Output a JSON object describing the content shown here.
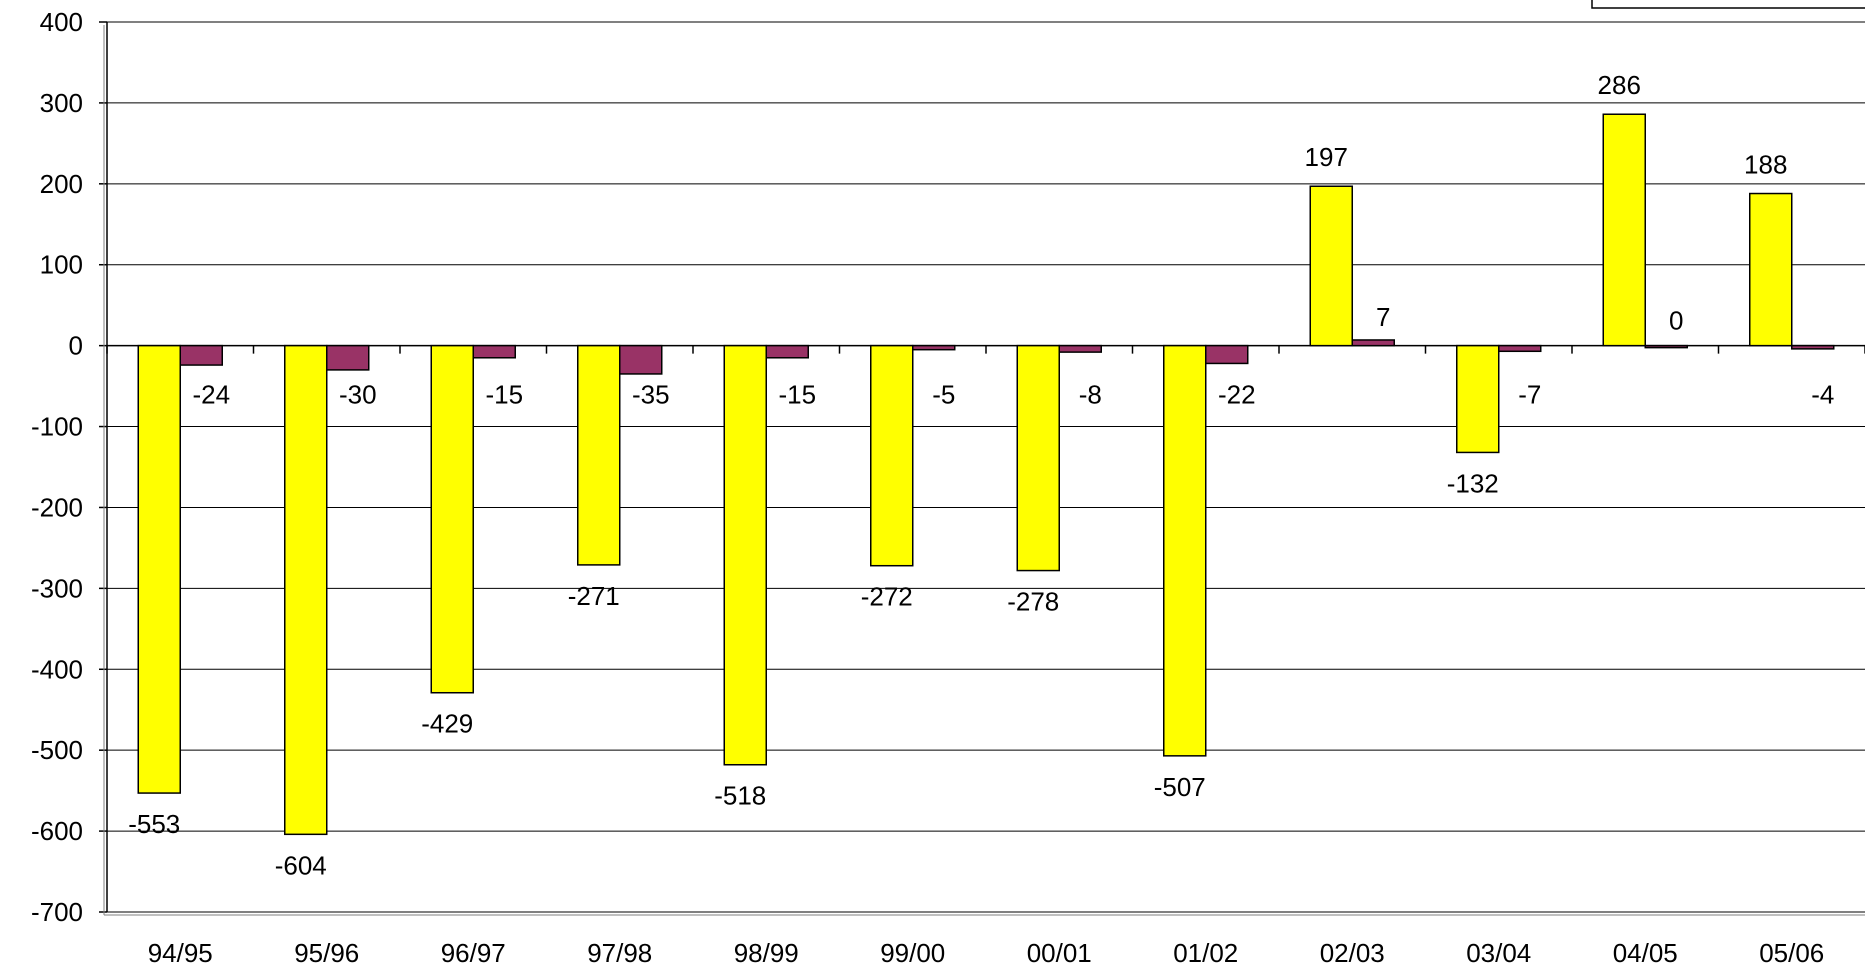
{
  "chart_data": {
    "type": "bar",
    "title": "",
    "xlabel": "",
    "ylabel": "",
    "ylim": [
      -700,
      400
    ],
    "yticks": [
      400,
      300,
      200,
      100,
      0,
      -100,
      -200,
      -300,
      -400,
      -500,
      -600,
      -700
    ],
    "grid": true,
    "legend": "top-right (cut off)",
    "categories": [
      "94/95",
      "95/96",
      "96/97",
      "97/98",
      "98/99",
      "99/00",
      "00/01",
      "01/02",
      "02/03",
      "03/04",
      "04/05",
      "05/06"
    ],
    "series": [
      {
        "color": "#FFFF00",
        "values": [
          -553,
          -604,
          -429,
          -271,
          -518,
          -272,
          -278,
          -507,
          197,
          -132,
          286,
          188
        ],
        "labels": [
          "-553",
          "-604",
          "-429",
          "-271",
          "-518",
          "-272",
          "-278",
          "-507",
          "197",
          "-132",
          "286",
          "188"
        ]
      },
      {
        "color": "#993366",
        "values": [
          -24,
          -30,
          -15,
          -35,
          -15,
          -5,
          -8,
          -22,
          7,
          -7,
          0,
          -4
        ],
        "labels": [
          "-24",
          "-30",
          "-15",
          "-35",
          "-15",
          "-5",
          "-8",
          "-22",
          "7",
          "-7",
          "0",
          "-4"
        ]
      }
    ]
  }
}
